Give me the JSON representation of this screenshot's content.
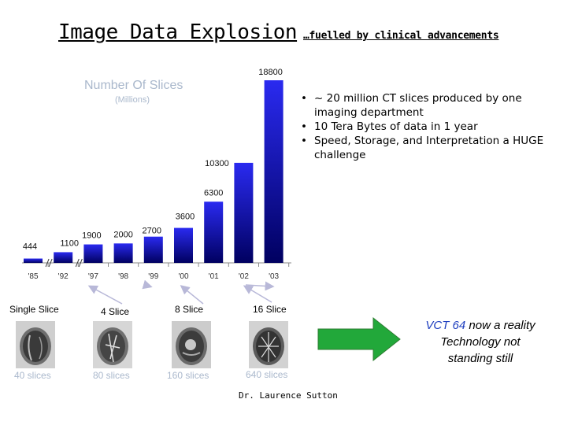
{
  "title": "Image Data Explosion",
  "subtitle": "…fuelled by clinical advancements",
  "chart_data": {
    "type": "bar",
    "ylabel": "Number Of Slices",
    "unit": "(Millions)",
    "categories": [
      "'85",
      "'92",
      "'97",
      "'98",
      "'99",
      "'00",
      "'01",
      "'02",
      "'03"
    ],
    "values": [
      444,
      1100,
      1900,
      2000,
      2700,
      3600,
      6300,
      10300,
      18800
    ],
    "data_labels": [
      "444",
      "1100",
      "1900",
      "2000",
      "2700",
      "3600",
      "6300",
      "10300",
      "18800"
    ],
    "ylim": [
      0,
      18800
    ],
    "grid": false,
    "legend": "none",
    "axis_breaks": [
      "'85-'92",
      "'92-'97"
    ],
    "bar_color": "#1a1ad0"
  },
  "bullets": [
    "~ 20 million CT slices produced by one imaging department",
    "10 Tera Bytes of data in 1 year",
    "Speed, Storage, and Interpretation a HUGE challenge"
  ],
  "scanners": [
    {
      "label": "Single Slice",
      "count": "40 slices"
    },
    {
      "label": "4 Slice",
      "count": "80 slices"
    },
    {
      "label": "8 Slice",
      "count": "160 slices"
    },
    {
      "label": "16 Slice",
      "count": "640 slices"
    }
  ],
  "vct_note": {
    "highlight": "VCT 64",
    "line1_rest": " now a reality",
    "line2": "Technology not",
    "line3": "standing still"
  },
  "credit": "Dr. Laurence Sutton",
  "colors": {
    "arrow": "#22a83a",
    "bar": "#1a1ad0",
    "muted_text": "#aab8cc",
    "pointer": "#b8b8d8"
  }
}
